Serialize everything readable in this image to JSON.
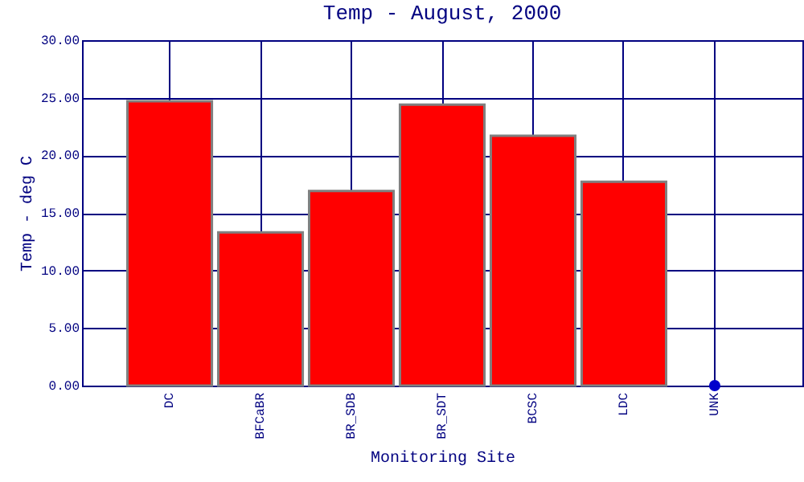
{
  "chart_data": {
    "type": "bar",
    "title": "Temp - August, 2000",
    "xlabel": "Monitoring Site",
    "ylabel": "Temp - deg C",
    "categories": [
      "DC",
      "BFCaBR",
      "BR_SDB",
      "BR_SDT",
      "BCSC",
      "LDC",
      "UNK"
    ],
    "series": [
      {
        "color": "#ff0000",
        "values": [
          24.7,
          13.3,
          16.9,
          24.4,
          21.7,
          17.7,
          null
        ]
      },
      {
        "type": "scatter",
        "color": "#0000cc",
        "x": [
          "UNK"
        ],
        "values": [
          0
        ]
      }
    ],
    "ylim": [
      0,
      30
    ],
    "yticks": [
      {
        "value": 0,
        "label": "0.00"
      },
      {
        "value": 5,
        "label": "5.00"
      },
      {
        "value": 10,
        "label": "10.00"
      },
      {
        "value": 15,
        "label": "15.00"
      },
      {
        "value": 20,
        "label": "20.00"
      },
      {
        "value": 25,
        "label": "25.00"
      },
      {
        "value": 30,
        "label": "30.00"
      }
    ],
    "grid": true,
    "marker": "circle"
  }
}
